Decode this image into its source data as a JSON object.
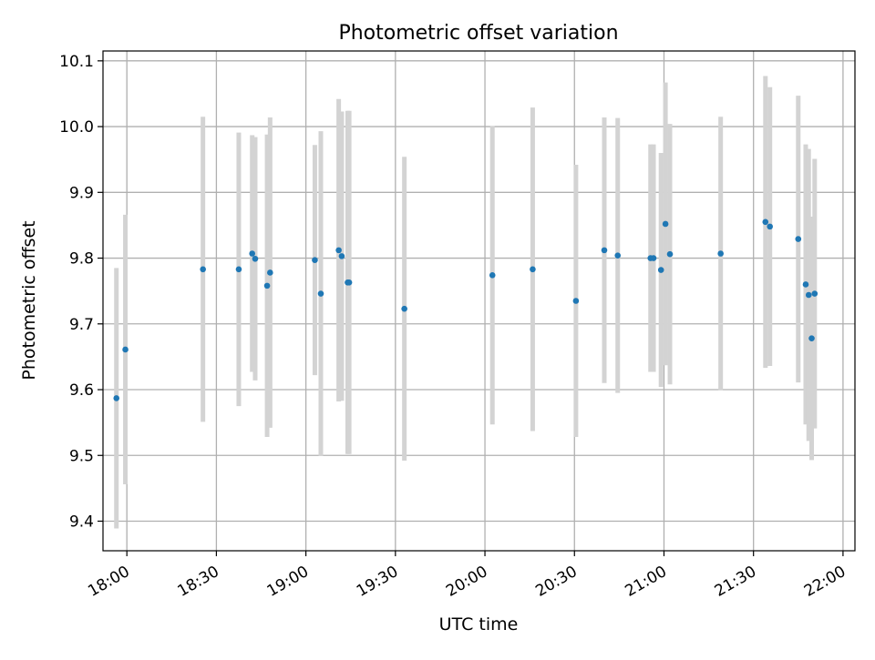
{
  "colors": {
    "point": "#1f77b4",
    "errorbar": "#d3d3d3",
    "grid": "#b0b0b0",
    "axes": "#000000"
  },
  "chart_data": {
    "type": "scatter",
    "title": "Photometric offset variation",
    "xlabel": "UTC time",
    "ylabel": "Photometric offset",
    "grid": true,
    "xlim": [
      "17:52",
      "22:04"
    ],
    "ylim": [
      9.355,
      10.115
    ],
    "x_ticks": [
      "18:00",
      "18:30",
      "19:00",
      "19:30",
      "20:00",
      "20:30",
      "21:00",
      "21:30",
      "22:00"
    ],
    "y_ticks": [
      9.4,
      9.5,
      9.6,
      9.7,
      9.8,
      9.9,
      10.0,
      10.1
    ],
    "y_tick_labels": [
      "9.4",
      "9.5",
      "9.6",
      "9.7",
      "9.8",
      "9.9",
      "10.0",
      "10.1"
    ],
    "points": [
      {
        "t": "17:56.5",
        "y": 9.587,
        "err": 0.198
      },
      {
        "t": "17:59.5",
        "y": 9.661,
        "err": 0.205
      },
      {
        "t": "18:25.5",
        "y": 9.783,
        "err": 0.232
      },
      {
        "t": "18:37.5",
        "y": 9.783,
        "err": 0.208
      },
      {
        "t": "18:42.0",
        "y": 9.807,
        "err": 0.18
      },
      {
        "t": "18:43.0",
        "y": 9.799,
        "err": 0.185
      },
      {
        "t": "18:47.0",
        "y": 9.758,
        "err": 0.23
      },
      {
        "t": "18:48.0",
        "y": 9.778,
        "err": 0.236
      },
      {
        "t": "19:03.0",
        "y": 9.797,
        "err": 0.175
      },
      {
        "t": "19:05.0",
        "y": 9.746,
        "err": 0.247
      },
      {
        "t": "19:11.0",
        "y": 9.812,
        "err": 0.23
      },
      {
        "t": "19:12.0",
        "y": 9.803,
        "err": 0.22
      },
      {
        "t": "19:14.0",
        "y": 9.763,
        "err": 0.261
      },
      {
        "t": "19:14.5",
        "y": 9.763,
        "err": 0.261
      },
      {
        "t": "19:33.0",
        "y": 9.723,
        "err": 0.231
      },
      {
        "t": "20:02.5",
        "y": 9.774,
        "err": 0.227
      },
      {
        "t": "20:16.0",
        "y": 9.783,
        "err": 0.246
      },
      {
        "t": "20:30.5",
        "y": 9.735,
        "err": 0.207
      },
      {
        "t": "20:40.0",
        "y": 9.812,
        "err": 0.202
      },
      {
        "t": "20:44.5",
        "y": 9.804,
        "err": 0.209
      },
      {
        "t": "20:55.5",
        "y": 9.8,
        "err": 0.173
      },
      {
        "t": "20:56.5",
        "y": 9.8,
        "err": 0.173
      },
      {
        "t": "20:59.0",
        "y": 9.782,
        "err": 0.178
      },
      {
        "t": "21:00.5",
        "y": 9.852,
        "err": 0.215
      },
      {
        "t": "21:02.0",
        "y": 9.806,
        "err": 0.198
      },
      {
        "t": "21:19.0",
        "y": 9.807,
        "err": 0.208
      },
      {
        "t": "21:34.0",
        "y": 9.855,
        "err": 0.222
      },
      {
        "t": "21:35.5",
        "y": 9.848,
        "err": 0.212
      },
      {
        "t": "21:45.0",
        "y": 9.829,
        "err": 0.218
      },
      {
        "t": "21:47.5",
        "y": 9.76,
        "err": 0.213
      },
      {
        "t": "21:48.5",
        "y": 9.744,
        "err": 0.222
      },
      {
        "t": "21:49.5",
        "y": 9.678,
        "err": 0.185
      },
      {
        "t": "21:50.5",
        "y": 9.746,
        "err": 0.205
      }
    ]
  }
}
